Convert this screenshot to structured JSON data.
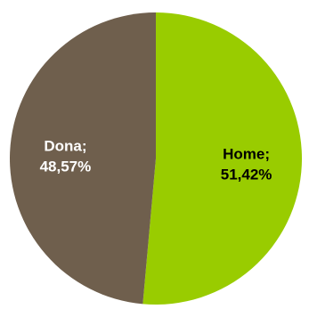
{
  "chart_data": {
    "type": "pie",
    "title": "",
    "slices": [
      {
        "name": "Home",
        "value": 51.42,
        "label_line1": "Home;",
        "label_line2": "51,42%",
        "color": "#99cc00",
        "label_color": "#000000"
      },
      {
        "name": "Dona",
        "value": 48.57,
        "label_line1": "Dona;",
        "label_line2": "48,57%",
        "color": "#6f5f4d",
        "label_color": "#ffffff"
      }
    ],
    "start_angle_deg": 0,
    "direction": "clockwise",
    "legend": "none"
  }
}
